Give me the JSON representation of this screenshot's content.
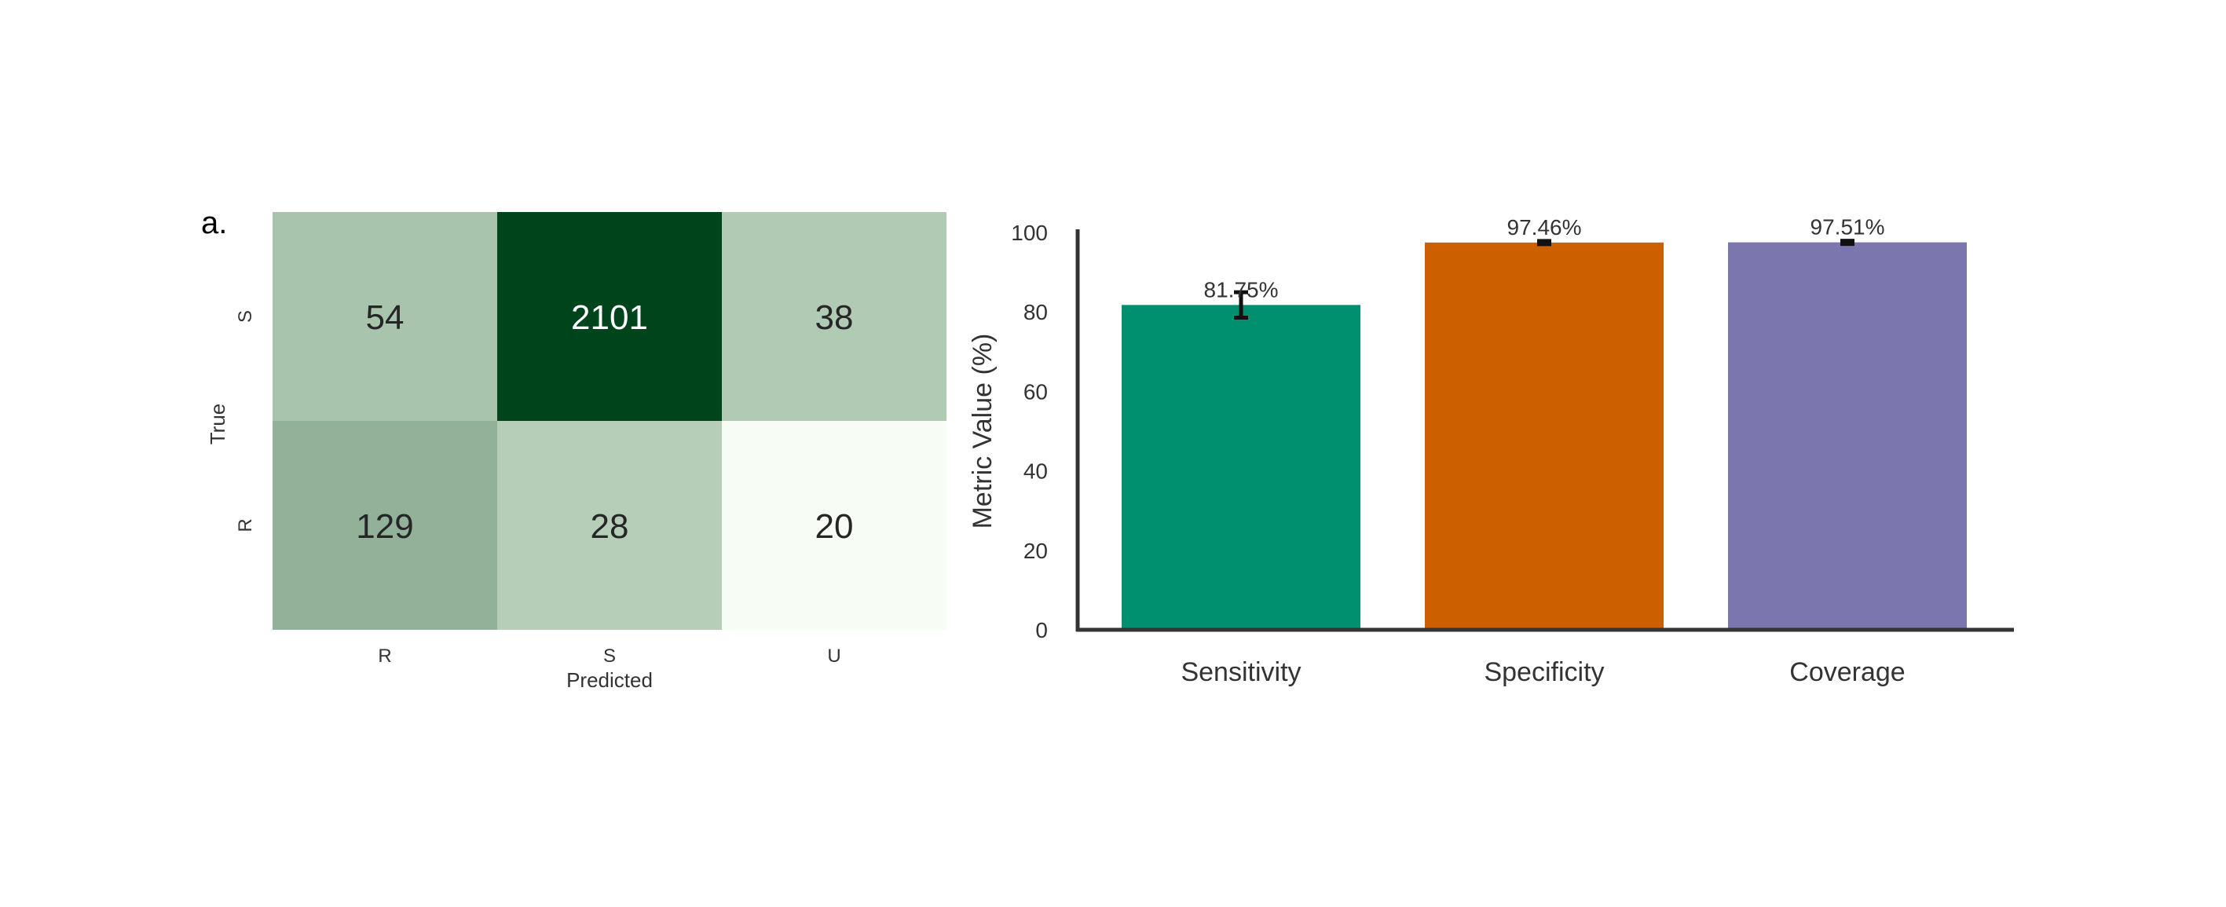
{
  "panel_label": "a.",
  "chart_data": [
    {
      "type": "heatmap",
      "xlabel": "Predicted",
      "ylabel": "True",
      "x_categories": [
        "R",
        "S",
        "U"
      ],
      "y_categories": [
        "S",
        "R"
      ],
      "values": [
        [
          54,
          2101,
          38
        ],
        [
          129,
          28,
          20
        ]
      ],
      "colormap": "Greens",
      "color_range": [
        0,
        2101
      ],
      "colors": {
        "low": "#f7fcf5",
        "high": "#00441b"
      }
    },
    {
      "type": "bar",
      "categories": [
        "Sensitivity",
        "Specificity",
        "Coverage"
      ],
      "values": [
        81.75,
        97.46,
        97.51
      ],
      "value_labels": [
        "81.75%",
        "97.46%",
        "97.51%"
      ],
      "error": [
        3.2,
        0.4,
        0.4
      ],
      "ylabel": "Metric Value (%)",
      "ylim": [
        0,
        100
      ],
      "yticks": [
        0,
        20,
        40,
        60,
        80,
        100
      ],
      "grid": false,
      "colors": [
        "#009070",
        "#cc5f00",
        "#7b77ae"
      ]
    }
  ]
}
